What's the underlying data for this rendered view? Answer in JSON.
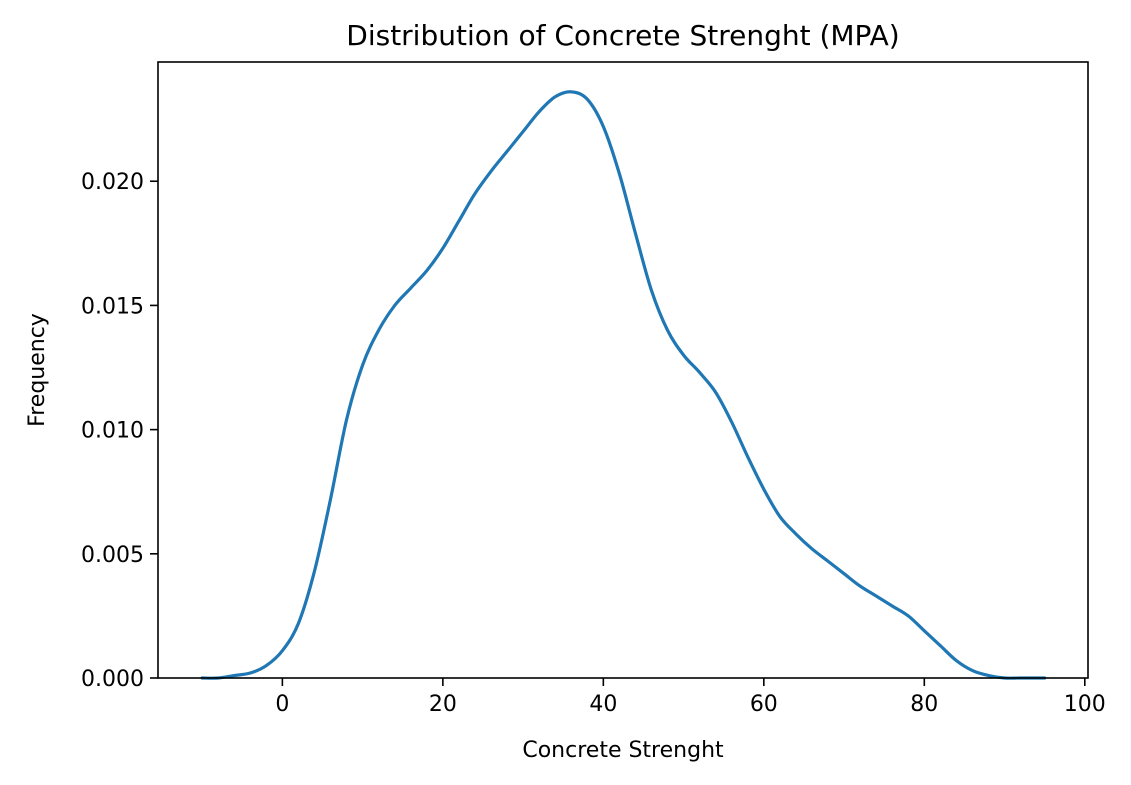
{
  "chart_data": {
    "type": "line",
    "title": "Distribution of Concrete Strenght (MPA)",
    "xlabel": "Concrete Strenght",
    "ylabel": "Frequency",
    "xlim": [
      -15.5,
      100.4
    ],
    "ylim": [
      0,
      0.0248
    ],
    "xticks": [
      0,
      20,
      40,
      60,
      80,
      100
    ],
    "xtick_labels": [
      "0",
      "20",
      "40",
      "60",
      "80",
      "100"
    ],
    "yticks": [
      0,
      0.005,
      0.01,
      0.015,
      0.02
    ],
    "ytick_labels": [
      "0.000",
      "0.005",
      "0.010",
      "0.015",
      "0.020"
    ],
    "grid": false,
    "legend": false,
    "color": "#1f77b4",
    "series": [
      {
        "x": [
          -10,
          -8,
          -6,
          -4,
          -2,
          0,
          2,
          4,
          6,
          8,
          10,
          12,
          14,
          16,
          18,
          20,
          22,
          24,
          26,
          28,
          30,
          32,
          34,
          36,
          38,
          40,
          42,
          44,
          46,
          48,
          50,
          52,
          54,
          56,
          58,
          60,
          62,
          64,
          66,
          68,
          70,
          72,
          74,
          76,
          78,
          80,
          82,
          84,
          86,
          88,
          90,
          92,
          95
        ],
        "y": [
          0.0,
          0.0,
          0.0001,
          0.0002,
          0.0005,
          0.0011,
          0.0022,
          0.0043,
          0.0072,
          0.0104,
          0.0126,
          0.014,
          0.015,
          0.0157,
          0.0164,
          0.0173,
          0.0184,
          0.0195,
          0.0204,
          0.0212,
          0.022,
          0.0228,
          0.0234,
          0.0236,
          0.0233,
          0.0222,
          0.0203,
          0.0179,
          0.0156,
          0.014,
          0.013,
          0.0123,
          0.0115,
          0.0103,
          0.0089,
          0.0076,
          0.0065,
          0.0058,
          0.0052,
          0.0047,
          0.0042,
          0.0037,
          0.0033,
          0.0029,
          0.0025,
          0.0019,
          0.0013,
          0.0007,
          0.0003,
          0.0001,
          0.0,
          0.0,
          0.0
        ]
      }
    ]
  }
}
